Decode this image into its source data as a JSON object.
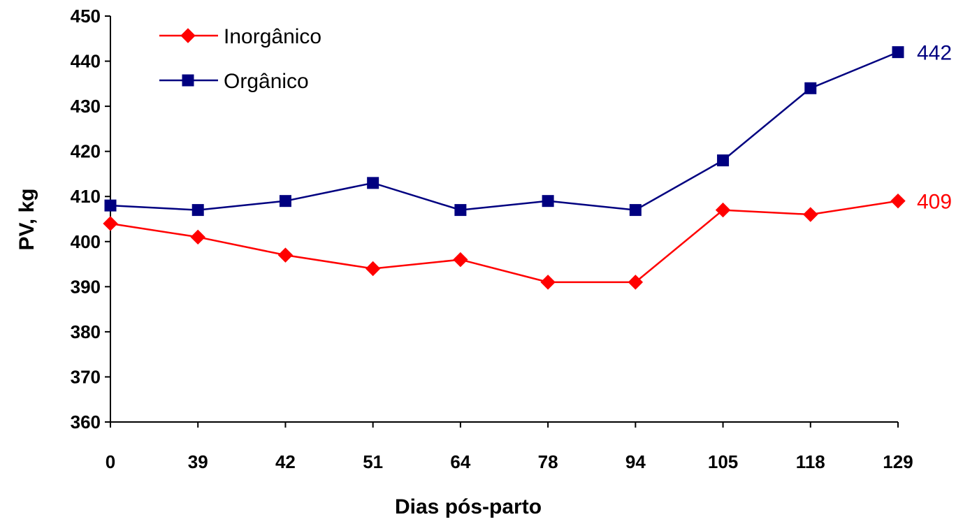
{
  "chart_data": {
    "type": "line",
    "title": "",
    "xlabel": "Dias pós-parto",
    "ylabel": "PV, kg",
    "categories": [
      "0",
      "39",
      "42",
      "51",
      "64",
      "78",
      "94",
      "105",
      "118",
      "129"
    ],
    "ylim": [
      360,
      450
    ],
    "yticks": [
      360,
      370,
      380,
      390,
      400,
      410,
      420,
      430,
      440,
      450
    ],
    "grid": false,
    "legend_position": "top-left",
    "series": [
      {
        "name": "Inorgânico",
        "color": "#ff0000",
        "marker": "diamond",
        "values": [
          404,
          401,
          397,
          394,
          396,
          391,
          391,
          407,
          406,
          409
        ],
        "end_label": "409"
      },
      {
        "name": "Orgânico",
        "color": "#000080",
        "marker": "square",
        "values": [
          408,
          407,
          409,
          413,
          407,
          409,
          407,
          418,
          434,
          442
        ],
        "end_label": "442"
      }
    ]
  }
}
